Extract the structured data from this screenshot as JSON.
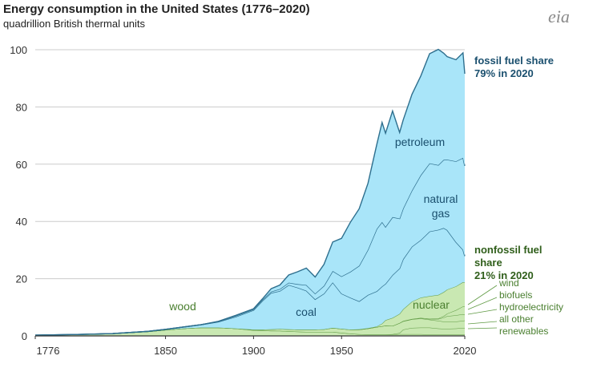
{
  "header": {
    "title": "Energy consumption in the United States (1776–2020)",
    "subtitle": "quadrillion British thermal units",
    "logo_text": "eia"
  },
  "annotations": {
    "fossil_title": "fossil fuel share",
    "fossil_value": "79% in 2020",
    "nonfossil_line1": "nonfossil fuel",
    "nonfossil_line2": "share",
    "nonfossil_value": "21% in 2020",
    "renewables": [
      "wind",
      "biofuels",
      "hydroelectricity",
      "all other",
      "renewables"
    ]
  },
  "colors": {
    "fossil_fill": "#a9e5f9",
    "fossil_line": "#2e6f8e",
    "nonfossil_fill": "#c9e8b2",
    "nonfossil_line": "#5f9a43",
    "label_fossil": "#1a4f6e",
    "label_nonfossil": "#4a7f2f",
    "axis": "#333333",
    "grid": "#cccccc"
  },
  "chart_data": {
    "type": "area",
    "title": "Energy consumption in the United States (1776–2020)",
    "ylabel": "quadrillion British thermal units",
    "xlim": [
      1776,
      2020
    ],
    "ylim": [
      0,
      100
    ],
    "x_ticks": [
      1776,
      1850,
      1900,
      1950,
      2020
    ],
    "y_ticks": [
      0,
      20,
      40,
      60,
      80,
      100
    ],
    "x": [
      1776,
      1800,
      1820,
      1840,
      1850,
      1860,
      1870,
      1880,
      1890,
      1900,
      1905,
      1910,
      1915,
      1920,
      1925,
      1930,
      1935,
      1940,
      1945,
      1950,
      1955,
      1960,
      1965,
      1970,
      1973,
      1975,
      1979,
      1983,
      1985,
      1990,
      1995,
      2000,
      2005,
      2008,
      2010,
      2015,
      2019,
      2020
    ],
    "series": [
      {
        "name": "wood",
        "label": "wood",
        "values": [
          0.25,
          0.5,
          0.8,
          1.5,
          2.1,
          2.6,
          2.9,
          2.9,
          2.6,
          2.0,
          1.9,
          1.8,
          1.8,
          1.6,
          1.5,
          1.4,
          1.4,
          1.4,
          1.4,
          1.1,
          0.8,
          0.6,
          0.5,
          0.5,
          0.5,
          0.5,
          0.5,
          0.6,
          0.6,
          0.6,
          0.6,
          0.5,
          0.5,
          0.5,
          0.5,
          0.5,
          0.5,
          0.5
        ]
      },
      {
        "name": "other-renewables",
        "label": "all other renewables",
        "values": [
          0,
          0,
          0,
          0,
          0,
          0,
          0,
          0,
          0,
          0,
          0,
          0,
          0,
          0,
          0,
          0,
          0,
          0,
          0,
          0,
          0,
          0,
          0,
          0,
          0,
          0,
          0.1,
          0.4,
          1.6,
          2.2,
          2.3,
          2.4,
          2.1,
          2.0,
          2.0,
          2.1,
          2.3,
          2.3
        ]
      },
      {
        "name": "hydroelectricity",
        "label": "hydroelectricity",
        "values": [
          0,
          0,
          0,
          0,
          0,
          0,
          0,
          0,
          0,
          0.2,
          0.3,
          0.5,
          0.6,
          0.7,
          0.7,
          0.8,
          0.8,
          0.9,
          1.4,
          1.4,
          1.4,
          1.6,
          2.1,
          2.6,
          2.9,
          3.1,
          2.9,
          3.5,
          2.9,
          3.0,
          3.2,
          2.8,
          2.7,
          2.5,
          2.5,
          2.4,
          2.5,
          2.6
        ]
      },
      {
        "name": "biofuels",
        "label": "biofuels",
        "values": [
          0,
          0,
          0,
          0,
          0,
          0,
          0,
          0,
          0,
          0,
          0,
          0,
          0,
          0,
          0,
          0,
          0,
          0,
          0,
          0,
          0,
          0,
          0,
          0,
          0,
          0,
          0,
          0,
          0.1,
          0.1,
          0.2,
          0.2,
          0.6,
          1.4,
          1.9,
          2.2,
          2.3,
          2.0
        ]
      },
      {
        "name": "wind",
        "label": "wind",
        "values": [
          0,
          0,
          0,
          0,
          0,
          0,
          0,
          0,
          0,
          0,
          0,
          0,
          0,
          0,
          0,
          0,
          0,
          0,
          0,
          0,
          0,
          0,
          0,
          0,
          0,
          0,
          0,
          0,
          0,
          0,
          0,
          0.1,
          0.2,
          0.5,
          0.9,
          1.8,
          2.7,
          3.0
        ]
      },
      {
        "name": "nuclear",
        "label": "nuclear",
        "values": [
          0,
          0,
          0,
          0,
          0,
          0,
          0,
          0,
          0,
          0,
          0,
          0,
          0,
          0,
          0,
          0,
          0,
          0,
          0,
          0,
          0,
          0.1,
          0.1,
          0.2,
          0.9,
          1.9,
          2.8,
          3.2,
          4.1,
          6.1,
          7.1,
          7.9,
          8.2,
          8.4,
          8.4,
          8.3,
          8.5,
          8.3
        ]
      },
      {
        "name": "coal",
        "label": "coal",
        "values": [
          0,
          0,
          0,
          0.1,
          0.2,
          0.5,
          1.0,
          2.0,
          4.1,
          6.8,
          10.0,
          12.7,
          13.3,
          15.5,
          14.7,
          13.6,
          10.6,
          12.5,
          15.9,
          12.3,
          11.2,
          9.8,
          11.6,
          12.3,
          13.0,
          12.7,
          15.0,
          15.9,
          17.5,
          19.2,
          20.1,
          22.6,
          22.8,
          22.4,
          20.8,
          15.5,
          11.3,
          9.2
        ]
      },
      {
        "name": "natural-gas",
        "label": "natural gas",
        "values": [
          0,
          0,
          0,
          0,
          0,
          0,
          0,
          0.1,
          0.3,
          0.3,
          0.4,
          0.5,
          0.7,
          0.8,
          1.2,
          2.0,
          2.0,
          2.7,
          4.0,
          6.0,
          9.0,
          12.4,
          15.8,
          21.8,
          22.5,
          19.9,
          20.2,
          17.4,
          17.7,
          19.6,
          22.7,
          23.8,
          22.6,
          23.8,
          24.6,
          28.2,
          32.1,
          31.5
        ]
      },
      {
        "name": "petroleum",
        "label": "petroleum",
        "values": [
          0,
          0,
          0,
          0,
          0,
          0,
          0,
          0.1,
          0.2,
          0.2,
          0.3,
          1.0,
          1.4,
          2.7,
          4.3,
          5.9,
          5.8,
          7.5,
          10.1,
          13.3,
          17.3,
          19.9,
          23.2,
          29.5,
          34.8,
          32.7,
          37.1,
          30.1,
          30.9,
          33.6,
          34.6,
          38.3,
          40.4,
          37.3,
          36.0,
          35.5,
          36.7,
          32.2
        ]
      }
    ],
    "labels": [
      "wood",
      "coal",
      "petroleum",
      "natural gas",
      "nuclear"
    ],
    "fossil_share_2020": "79%",
    "nonfossil_share_2020": "21%"
  }
}
